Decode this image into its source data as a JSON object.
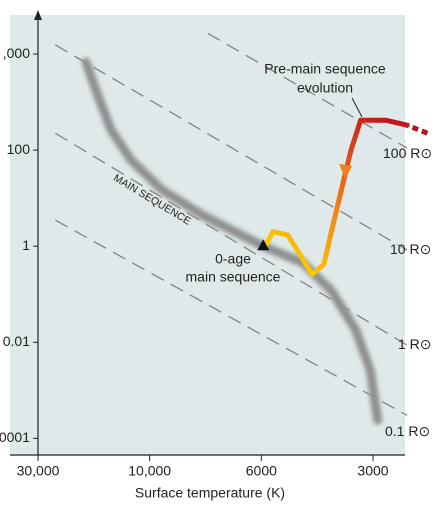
{
  "chart_data": {
    "type": "line",
    "xlabel": "Surface temperature (K)",
    "log_x": true,
    "log_y": true,
    "xlim": [
      40000,
      2500
    ],
    "xticks": [
      {
        "value": 30000,
        "label": "30,000"
      },
      {
        "value": 10000,
        "label": "10,000"
      },
      6000,
      3000
    ],
    "ylim": [
      65000,
      4.5e-05
    ],
    "yticks": [
      {
        "value": 10000,
        "label": ",000"
      },
      100,
      1,
      0.01,
      {
        "value": 0.0001,
        "label": "0001"
      }
    ],
    "background": "#dfe9e9",
    "main_sequence": {
      "color": "#8f8f8f",
      "x": [
        18700,
        17000,
        14600,
        12000,
        9460,
        7850,
        5930,
        4650,
        3890,
        3340,
        3050,
        2920
      ],
      "y": [
        6800,
        1800,
        260,
        62,
        15,
        4.4,
        1,
        0.46,
        0.12,
        0.018,
        0.0026,
        0.00024
      ]
    },
    "radius_lines": [
      {
        "label": "100 R⊙",
        "x": [
          7670,
          2470
        ],
        "y": [
          27000,
          110
        ]
      },
      {
        "label": "10 R⊙",
        "x": [
          25300,
          2470
        ],
        "y": [
          15500,
          0.83
        ]
      },
      {
        "label": "1 R⊙",
        "x": [
          25300,
          2470
        ],
        "y": [
          225,
          0.0087
        ]
      },
      {
        "label": "0.1 R⊙",
        "x": [
          25300,
          2470
        ],
        "y": [
          3.5,
          0.0003
        ]
      }
    ],
    "track": {
      "colors": [
        "#c4161c",
        "#f07f1a",
        "#ffe600"
      ],
      "x": [
        2470,
        2790,
        3240,
        3440,
        3650,
        3880,
        4070,
        4380,
        4650,
        5090,
        5580,
        5860
      ],
      "y": [
        330,
        420,
        420,
        100,
        15,
        2.1,
        0.42,
        0.26,
        0.56,
        1.7,
        2.0,
        1
      ]
    },
    "track_extension": {
      "color": "#b0141a",
      "x": [
        2200,
        2470
      ],
      "y": [
        225,
        330
      ]
    },
    "zero_age": {
      "x": 5930,
      "y": 1
    },
    "annotations": [
      {
        "text": "MAIN SEQUENCE"
      },
      {
        "text": "Pre-main sequence"
      },
      {
        "text": "evolution"
      },
      {
        "text": "0-age"
      },
      {
        "text": "main sequence"
      }
    ]
  }
}
